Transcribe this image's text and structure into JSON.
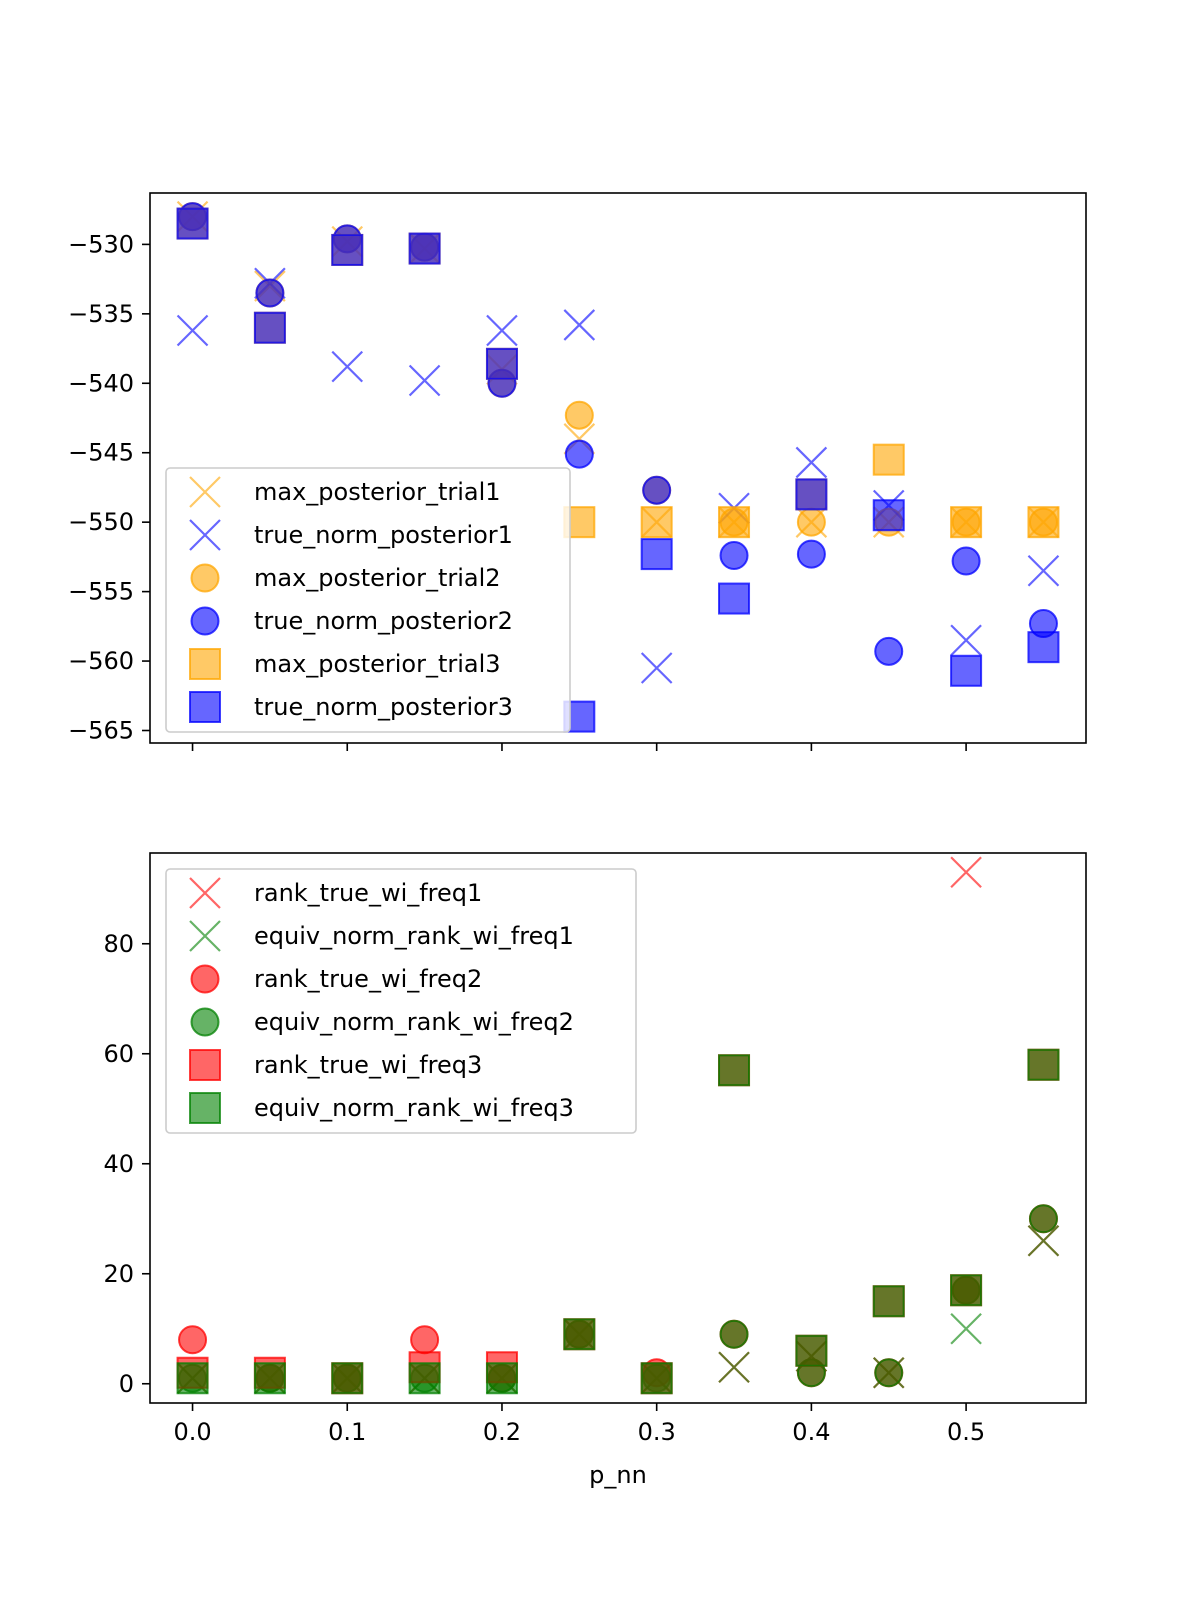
{
  "chart_data": [
    {
      "type": "scatter",
      "xlabel": "",
      "ylabel": "",
      "xlim": [
        -0.0275,
        0.5775
      ],
      "ylim": [
        -565.9,
        -526.3
      ],
      "x_ticks": [
        0.0,
        0.1,
        0.2,
        0.3,
        0.4,
        0.5
      ],
      "x_tick_labels_visible": false,
      "y_ticks": [
        -530,
        -535,
        -540,
        -545,
        -550,
        -555,
        -560,
        -565
      ],
      "y_tick_labels": [
        "−530",
        "−535",
        "−540",
        "−545",
        "−550",
        "−555",
        "−560",
        "−565"
      ],
      "grid": false,
      "legend_position": "lower-left",
      "x": [
        0.0,
        0.05,
        0.1,
        0.15,
        0.2,
        0.25,
        0.3,
        0.35,
        0.4,
        0.45,
        0.5,
        0.55
      ],
      "series": [
        {
          "name": "max_posterior_trial1",
          "marker": "x",
          "color": "#ffa500",
          "values": [
            -528.0,
            -533.0,
            -529.8,
            -530.3,
            -539.0,
            -544.0,
            -550.0,
            -550.0,
            -550.0,
            -550.0,
            -550.0,
            -550.0
          ]
        },
        {
          "name": "true_norm_posterior1",
          "marker": "x",
          "color": "#0000ff",
          "values": [
            -536.2,
            -532.8,
            -538.8,
            -539.8,
            -536.2,
            -535.8,
            -560.5,
            -549.0,
            -545.7,
            -548.8,
            -558.5,
            -553.5
          ]
        },
        {
          "name": "max_posterior_trial2",
          "marker": "o",
          "color": "#ffa500",
          "values": [
            -528.0,
            -533.5,
            -529.6,
            -530.2,
            -540.0,
            -542.3,
            -547.7,
            -550.0,
            -550.0,
            -550.0,
            -550.0,
            -550.0
          ]
        },
        {
          "name": "true_norm_posterior2",
          "marker": "o",
          "color": "#0000ff",
          "values": [
            -528.0,
            -533.5,
            -529.6,
            -530.2,
            -540.0,
            -545.1,
            -547.7,
            -552.4,
            -552.3,
            -559.3,
            -552.8,
            -557.3
          ]
        },
        {
          "name": "max_posterior_trial3",
          "marker": "s",
          "color": "#ffa500",
          "values": [
            -528.5,
            -536.0,
            -530.4,
            -530.3,
            -538.6,
            -550.0,
            -550.0,
            -550.0,
            -548.0,
            -545.5,
            -550.0,
            -550.0
          ]
        },
        {
          "name": "true_norm_posterior3",
          "marker": "s",
          "color": "#0000ff",
          "values": [
            -528.5,
            -536.0,
            -530.4,
            -530.3,
            -538.6,
            -564.0,
            -552.3,
            -555.5,
            -548.0,
            -549.5,
            -560.7,
            -559.0
          ]
        }
      ]
    },
    {
      "type": "scatter",
      "xlabel": "p_nn",
      "ylabel": "",
      "xlim": [
        -0.0275,
        0.5775
      ],
      "ylim": [
        -3.5,
        96.5
      ],
      "x_ticks": [
        0.0,
        0.1,
        0.2,
        0.3,
        0.4,
        0.5
      ],
      "x_tick_labels": [
        "0.0",
        "0.1",
        "0.2",
        "0.3",
        "0.4",
        "0.5"
      ],
      "y_ticks": [
        0,
        20,
        40,
        60,
        80
      ],
      "y_tick_labels": [
        "0",
        "20",
        "40",
        "60",
        "80"
      ],
      "grid": false,
      "legend_position": "upper-left",
      "x": [
        0.0,
        0.05,
        0.1,
        0.15,
        0.2,
        0.25,
        0.3,
        0.35,
        0.4,
        0.45,
        0.5,
        0.55
      ],
      "series": [
        {
          "name": "rank_true_wi_freq1",
          "marker": "x",
          "color": "#ff0000",
          "values": [
            1,
            1,
            1,
            1,
            1,
            9,
            1,
            3,
            5,
            2,
            93,
            26
          ]
        },
        {
          "name": "equiv_norm_rank_wi_freq1",
          "marker": "x",
          "color": "#008000",
          "values": [
            1,
            1,
            1,
            1,
            1,
            9,
            1,
            3,
            5,
            2,
            10,
            26
          ]
        },
        {
          "name": "rank_true_wi_freq2",
          "marker": "o",
          "color": "#ff0000",
          "values": [
            8,
            1,
            1,
            8,
            1,
            9,
            2,
            9,
            2,
            2,
            17,
            30
          ]
        },
        {
          "name": "equiv_norm_rank_wi_freq2",
          "marker": "o",
          "color": "#008000",
          "values": [
            1,
            1,
            1,
            1,
            1,
            9,
            1,
            9,
            2,
            2,
            17,
            30
          ]
        },
        {
          "name": "rank_true_wi_freq3",
          "marker": "s",
          "color": "#ff0000",
          "values": [
            2,
            2,
            1,
            3,
            3,
            9,
            1,
            57,
            6,
            15,
            17,
            58
          ]
        },
        {
          "name": "equiv_norm_rank_wi_freq3",
          "marker": "s",
          "color": "#008000",
          "values": [
            1,
            1,
            1,
            1,
            1,
            9,
            1,
            57,
            6,
            15,
            17,
            58
          ]
        }
      ]
    }
  ]
}
